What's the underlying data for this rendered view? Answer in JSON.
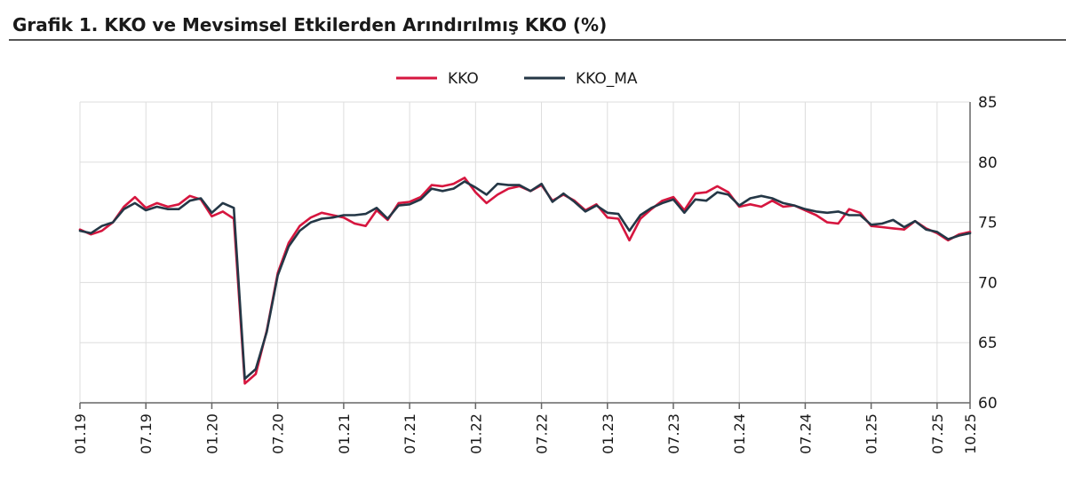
{
  "title": "Grafik 1. KKO ve Mevsimsel Etkilerden Arındırılmış KKO (%)",
  "colors": {
    "KKO": "#d6163f",
    "KKO_MA": "#243746",
    "grid": "#dddddd",
    "axis": "#666666"
  },
  "chart_data": {
    "type": "line",
    "title": "Grafik 1. KKO ve Mevsimsel Etkilerden Arındırılmış KKO (%)",
    "xlabel": "",
    "ylabel": "",
    "ylim": [
      60,
      85
    ],
    "y_ticks": [
      60,
      65,
      70,
      75,
      80,
      85
    ],
    "y_axis_side": "right",
    "grid": true,
    "legend_position": "top-center",
    "x_tick_labels": [
      "01.19",
      "07.19",
      "01.20",
      "07.20",
      "01.21",
      "07.21",
      "01.22",
      "07.22",
      "01.23",
      "07.23",
      "01.24",
      "07.24",
      "01.25",
      "07.25",
      "10.25"
    ],
    "x": [
      "01.19",
      "02.19",
      "03.19",
      "04.19",
      "05.19",
      "06.19",
      "07.19",
      "08.19",
      "09.19",
      "10.19",
      "11.19",
      "12.19",
      "01.20",
      "02.20",
      "03.20",
      "04.20",
      "05.20",
      "06.20",
      "07.20",
      "08.20",
      "09.20",
      "10.20",
      "11.20",
      "12.20",
      "01.21",
      "02.21",
      "03.21",
      "04.21",
      "05.21",
      "06.21",
      "07.21",
      "08.21",
      "09.21",
      "10.21",
      "11.21",
      "12.21",
      "01.22",
      "02.22",
      "03.22",
      "04.22",
      "05.22",
      "06.22",
      "07.22",
      "08.22",
      "09.22",
      "10.22",
      "11.22",
      "12.22",
      "01.23",
      "02.23",
      "03.23",
      "04.23",
      "05.23",
      "06.23",
      "07.23",
      "08.23",
      "09.23",
      "10.23",
      "11.23",
      "12.23",
      "01.24",
      "02.24",
      "03.24",
      "04.24",
      "05.24",
      "06.24",
      "07.24",
      "08.24",
      "09.24",
      "10.24",
      "11.24",
      "12.24",
      "01.25",
      "02.25",
      "03.25",
      "04.25",
      "05.25",
      "06.25",
      "07.25",
      "08.25",
      "09.25",
      "10.25"
    ],
    "series": [
      {
        "name": "KKO",
        "color": "#d6163f",
        "values": [
          74.4,
          74.0,
          74.3,
          75.0,
          76.3,
          77.1,
          76.2,
          76.6,
          76.3,
          76.5,
          77.2,
          76.9,
          75.5,
          75.9,
          75.3,
          61.6,
          62.4,
          66.0,
          70.8,
          73.3,
          74.7,
          75.4,
          75.8,
          75.6,
          75.4,
          74.9,
          74.7,
          76.0,
          75.2,
          76.6,
          76.7,
          77.1,
          78.1,
          78.0,
          78.2,
          78.7,
          77.5,
          76.6,
          77.3,
          77.8,
          78.0,
          77.6,
          78.1,
          76.8,
          77.3,
          76.8,
          76.0,
          76.5,
          75.4,
          75.3,
          73.5,
          75.3,
          76.1,
          76.8,
          77.1,
          76.0,
          77.4,
          77.5,
          78.0,
          77.5,
          76.3,
          76.5,
          76.3,
          76.8,
          76.3,
          76.4,
          76.0,
          75.6,
          75.0,
          74.9,
          76.1,
          75.8,
          74.7,
          74.6,
          74.5,
          74.4,
          75.1,
          74.5,
          74.1,
          73.5,
          74.0,
          74.2
        ]
      },
      {
        "name": "KKO_MA",
        "color": "#243746",
        "values": [
          74.3,
          74.1,
          74.7,
          75.0,
          76.1,
          76.6,
          76.0,
          76.3,
          76.1,
          76.1,
          76.8,
          77.0,
          75.8,
          76.6,
          76.2,
          62.0,
          62.8,
          65.9,
          70.6,
          73.0,
          74.3,
          75.0,
          75.3,
          75.4,
          75.6,
          75.6,
          75.7,
          76.2,
          75.3,
          76.4,
          76.5,
          76.9,
          77.8,
          77.6,
          77.8,
          78.4,
          77.9,
          77.3,
          78.2,
          78.1,
          78.1,
          77.6,
          78.2,
          76.7,
          77.4,
          76.7,
          75.9,
          76.4,
          75.8,
          75.7,
          74.3,
          75.6,
          76.2,
          76.6,
          76.9,
          75.8,
          76.9,
          76.8,
          77.5,
          77.3,
          76.4,
          77.0,
          77.2,
          77.0,
          76.6,
          76.4,
          76.1,
          75.9,
          75.8,
          75.9,
          75.6,
          75.6,
          74.8,
          74.9,
          75.2,
          74.6,
          75.1,
          74.4,
          74.2,
          73.6,
          73.9,
          74.1
        ]
      }
    ]
  }
}
